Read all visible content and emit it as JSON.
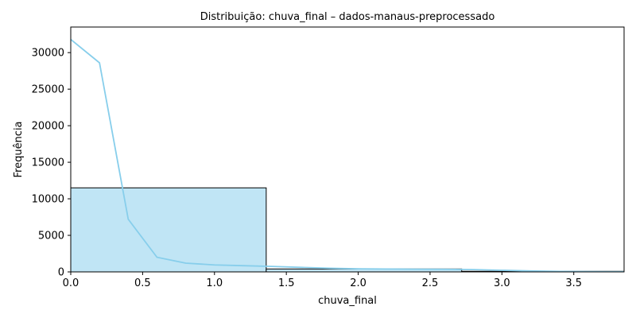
{
  "chart_data": {
    "type": "bar",
    "title": "Distribuição: chuva_final – dados-manaus-preprocessado",
    "xlabel": "chuva_final",
    "ylabel": "Frequência",
    "xlim": [
      0,
      3.85
    ],
    "ylim": [
      0,
      33500
    ],
    "grid": false,
    "x_ticks": [
      0.0,
      0.5,
      1.0,
      1.5,
      2.0,
      2.5,
      3.0,
      3.5
    ],
    "x_tick_labels": [
      "0.0",
      "0.5",
      "1.0",
      "1.5",
      "2.0",
      "2.5",
      "3.0",
      "3.5"
    ],
    "y_ticks": [
      0,
      5000,
      10000,
      15000,
      20000,
      25000,
      30000
    ],
    "y_tick_labels": [
      "0",
      "5000",
      "10000",
      "15000",
      "20000",
      "25000",
      "30000"
    ],
    "bins": [
      {
        "start": 0.0,
        "end": 1.36,
        "count": 11500
      },
      {
        "start": 1.36,
        "end": 2.72,
        "count": 400
      },
      {
        "start": 2.72,
        "end": 4.08,
        "count": 80
      }
    ],
    "kde": {
      "x": [
        0.0,
        0.2,
        0.4,
        0.6,
        0.8,
        1.0,
        1.2,
        1.4,
        1.6,
        1.8,
        2.0,
        2.2,
        2.4,
        2.6,
        2.8,
        3.0,
        3.2,
        3.4,
        3.6,
        3.85
      ],
      "y": [
        31800,
        28600,
        7200,
        2000,
        1200,
        950,
        850,
        750,
        620,
        500,
        420,
        390,
        370,
        350,
        310,
        220,
        130,
        70,
        40,
        20
      ]
    },
    "colors": {
      "bar_fill": "#c0e5f5",
      "bar_edge": "#000000",
      "kde_line": "#87ceeb"
    }
  }
}
